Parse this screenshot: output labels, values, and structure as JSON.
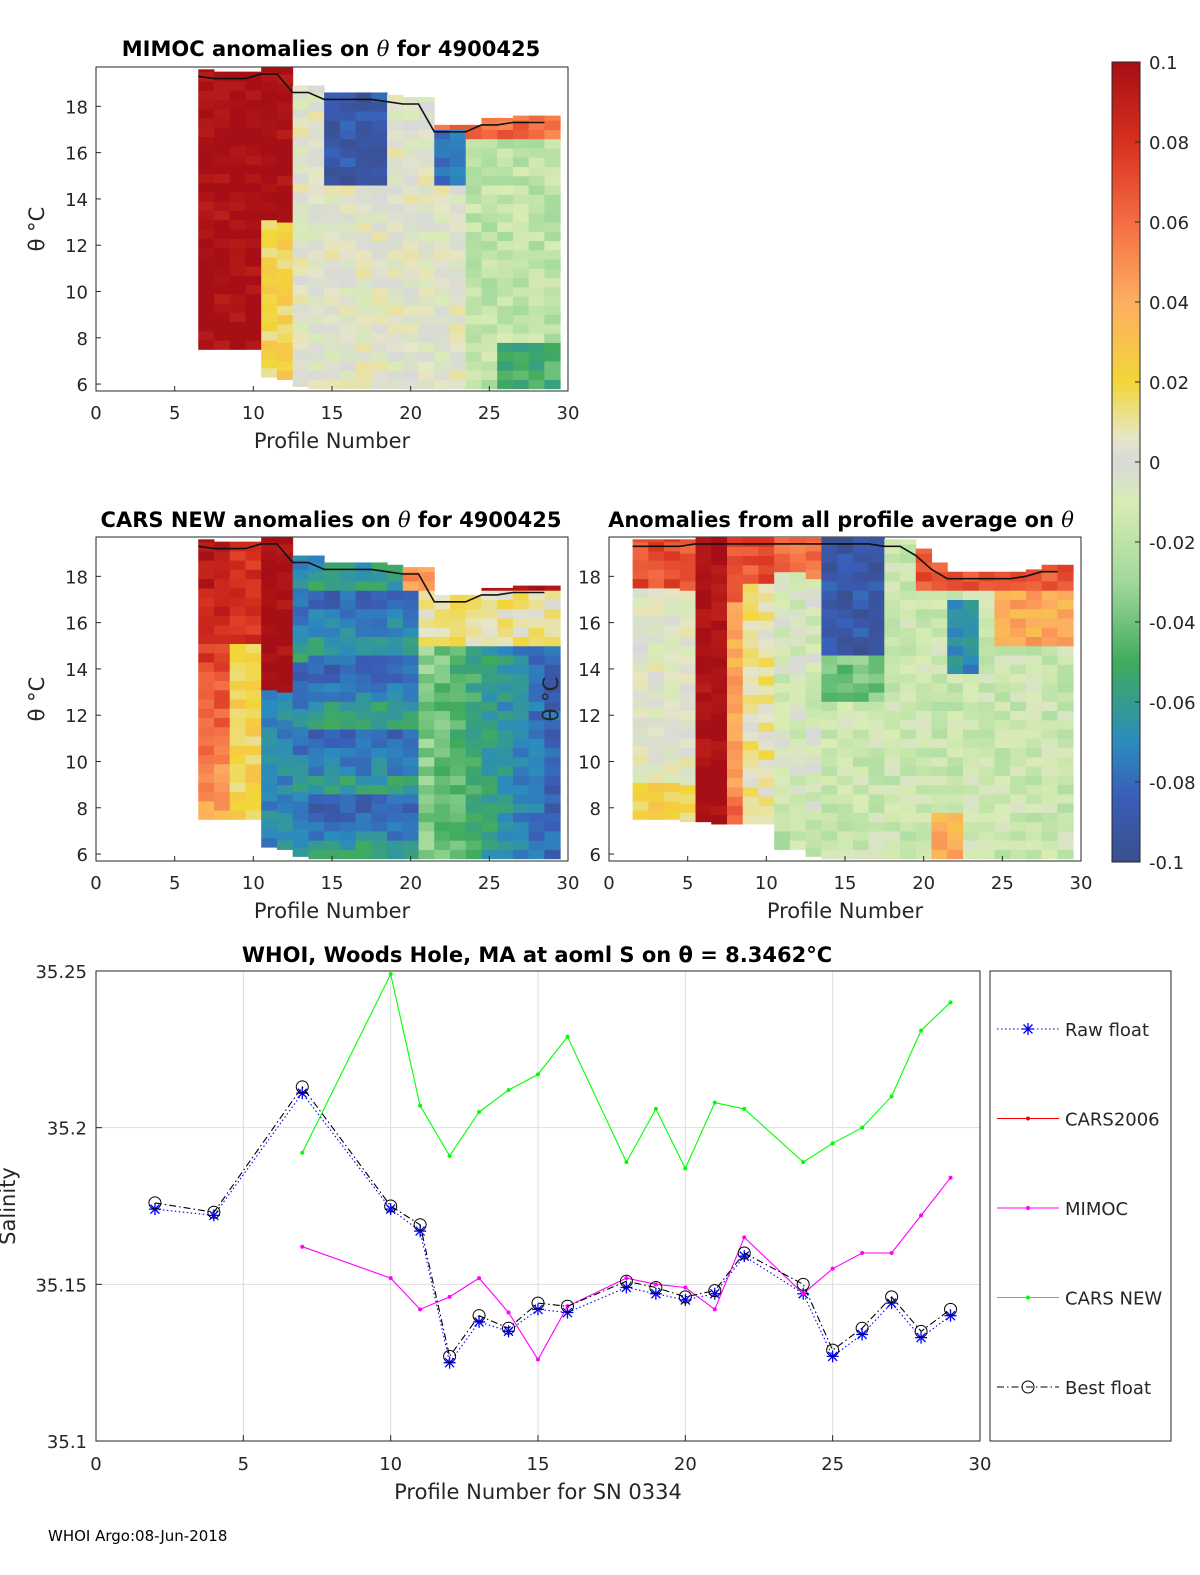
{
  "colors": {
    "raw_float": "#0000ff",
    "cars2006": "#ff0000",
    "mimoc": "#ff00ff",
    "cars_new": "#00ff00",
    "best_float": "#000000"
  },
  "footer": "WHOI Argo:08-Jun-2018",
  "chart_data": [
    {
      "id": "mimoc",
      "type": "heatmap",
      "title_prefix": "MIMOC anomalies on",
      "title_symbol": "θ",
      "title_suffix": "for 4900425",
      "xlabel": "Profile Number",
      "ylabel": "θ °C",
      "xlim": [
        0,
        30
      ],
      "ylim": [
        5.7,
        19.7
      ],
      "xticks": [
        "0",
        "5",
        "10",
        "15",
        "20",
        "25",
        "30"
      ],
      "yticks": [
        "6",
        "8",
        "10",
        "12",
        "14",
        "16",
        "18"
      ],
      "profile_bounds": [
        [
          7,
          7.5,
          19.6
        ],
        [
          8,
          7.5,
          19.5
        ],
        [
          9,
          7.5,
          19.5
        ],
        [
          10,
          7.5,
          19.5
        ],
        [
          11,
          6.3,
          19.7
        ],
        [
          12,
          6.2,
          19.7
        ],
        [
          13,
          5.9,
          18.9
        ],
        [
          14,
          5.8,
          18.9
        ],
        [
          15,
          5.8,
          18.6
        ],
        [
          16,
          5.8,
          18.6
        ],
        [
          17,
          5.8,
          18.6
        ],
        [
          18,
          5.8,
          18.6
        ],
        [
          19,
          5.8,
          18.5
        ],
        [
          20,
          5.8,
          18.4
        ],
        [
          21,
          5.8,
          18.4
        ],
        [
          22,
          5.8,
          17.2
        ],
        [
          23,
          5.8,
          17.2
        ],
        [
          24,
          5.8,
          17.2
        ],
        [
          25,
          5.8,
          17.5
        ],
        [
          26,
          5.8,
          17.5
        ],
        [
          27,
          5.8,
          17.6
        ],
        [
          28,
          5.8,
          17.6
        ],
        [
          29,
          5.8,
          17.6
        ]
      ]
    },
    {
      "id": "cars_new",
      "type": "heatmap",
      "title_prefix": "CARS NEW anomalies on",
      "title_symbol": "θ",
      "title_suffix": "for 4900425",
      "xlabel": "Profile Number",
      "ylabel": "θ °C",
      "xlim": [
        0,
        30
      ],
      "ylim": [
        5.7,
        19.7
      ],
      "xticks": [
        "0",
        "5",
        "10",
        "15",
        "20",
        "25",
        "30"
      ],
      "yticks": [
        "6",
        "8",
        "10",
        "12",
        "14",
        "16",
        "18"
      ],
      "profile_bounds": [
        [
          7,
          7.5,
          19.6
        ],
        [
          8,
          7.5,
          19.5
        ],
        [
          9,
          7.5,
          19.5
        ],
        [
          10,
          7.5,
          19.5
        ],
        [
          11,
          6.3,
          19.7
        ],
        [
          12,
          6.2,
          19.7
        ],
        [
          13,
          5.9,
          18.9
        ],
        [
          14,
          5.8,
          18.9
        ],
        [
          15,
          5.8,
          18.6
        ],
        [
          16,
          5.8,
          18.6
        ],
        [
          17,
          5.8,
          18.6
        ],
        [
          18,
          5.8,
          18.6
        ],
        [
          19,
          5.8,
          18.5
        ],
        [
          20,
          5.8,
          18.4
        ],
        [
          21,
          5.8,
          18.4
        ],
        [
          22,
          5.8,
          17.2
        ],
        [
          23,
          5.8,
          17.2
        ],
        [
          24,
          5.8,
          17.2
        ],
        [
          25,
          5.8,
          17.5
        ],
        [
          26,
          5.8,
          17.5
        ],
        [
          27,
          5.8,
          17.6
        ],
        [
          28,
          5.8,
          17.6
        ],
        [
          29,
          5.8,
          17.6
        ]
      ]
    },
    {
      "id": "profile_average",
      "type": "heatmap",
      "title_prefix": "Anomalies from all profile average on",
      "title_symbol": "θ",
      "title_suffix": "",
      "xlabel": "Profile Number",
      "ylabel": "θ °C",
      "xlim": [
        0,
        30
      ],
      "ylim": [
        5.7,
        19.7
      ],
      "xticks": [
        "0",
        "5",
        "10",
        "15",
        "20",
        "25",
        "30"
      ],
      "yticks": [
        "6",
        "8",
        "10",
        "12",
        "14",
        "16",
        "18"
      ],
      "profile_bounds": [
        [
          2,
          7.5,
          19.6
        ],
        [
          3,
          7.5,
          19.6
        ],
        [
          4,
          7.5,
          19.6
        ],
        [
          5,
          7.4,
          19.6
        ],
        [
          6,
          7.4,
          19.7
        ],
        [
          7,
          7.3,
          19.7
        ],
        [
          8,
          7.3,
          19.7
        ],
        [
          9,
          7.3,
          19.7
        ],
        [
          10,
          7.3,
          19.7
        ],
        [
          11,
          6.2,
          19.7
        ],
        [
          12,
          6.2,
          19.7
        ],
        [
          13,
          5.9,
          19.7
        ],
        [
          14,
          5.8,
          19.7
        ],
        [
          15,
          5.8,
          19.7
        ],
        [
          16,
          5.8,
          19.7
        ],
        [
          17,
          5.8,
          19.7
        ],
        [
          18,
          5.8,
          19.6
        ],
        [
          19,
          5.8,
          19.6
        ],
        [
          20,
          5.8,
          19.2
        ],
        [
          21,
          5.8,
          18.6
        ],
        [
          22,
          5.8,
          18.2
        ],
        [
          23,
          5.8,
          18.2
        ],
        [
          24,
          5.8,
          18.2
        ],
        [
          25,
          5.8,
          18.2
        ],
        [
          26,
          5.8,
          18.2
        ],
        [
          27,
          5.8,
          18.3
        ],
        [
          28,
          5.8,
          18.5
        ],
        [
          29,
          5.8,
          18.5
        ]
      ]
    },
    {
      "id": "colorbar",
      "type": "heatmap",
      "colormap": "red-yellow-gray-green-blue",
      "clim": [
        -0.1,
        0.1
      ],
      "tick_values": [
        0.1,
        0.08,
        0.06,
        0.04,
        0.02,
        0,
        -0.02,
        -0.04,
        -0.06,
        -0.08,
        -0.1
      ],
      "tick_labels": [
        "0.1",
        "0.08",
        "0.06",
        "0.04",
        "0.02",
        "0",
        "-0.02",
        "-0.04",
        "-0.06",
        "-0.08",
        "-0.1"
      ]
    },
    {
      "id": "salinity",
      "type": "line",
      "title": "WHOI, Woods Hole, MA at aoml S on θ = 8.3462°C",
      "xlabel": "Profile Number for SN 0334",
      "ylabel": "Salinity",
      "xlim": [
        0,
        30
      ],
      "ylim": [
        35.1,
        35.25
      ],
      "xticks": [
        "0",
        "5",
        "10",
        "15",
        "20",
        "25",
        "30"
      ],
      "yticks": [
        "35.1",
        "35.15",
        "35.2",
        "35.25"
      ],
      "grid": true,
      "legend_position": "outside-right",
      "series": [
        {
          "name": "Raw float",
          "color": "#0000ff",
          "marker": "asterisk",
          "line": "dotted",
          "x": [
            2,
            4,
            7,
            10,
            11,
            12,
            13,
            14,
            15,
            16,
            18,
            19,
            20,
            21,
            22,
            24,
            25,
            26,
            27,
            28,
            29
          ],
          "y": [
            35.174,
            35.172,
            35.211,
            35.174,
            35.167,
            35.125,
            35.138,
            35.135,
            35.142,
            35.141,
            35.149,
            35.147,
            35.145,
            35.147,
            35.159,
            35.147,
            35.127,
            35.134,
            35.144,
            35.133,
            35.14
          ]
        },
        {
          "name": "CARS2006",
          "color": "#ff0000",
          "marker": "dot",
          "line": "solid",
          "x": [],
          "y": []
        },
        {
          "name": "MIMOC",
          "color": "#ff00ff",
          "marker": "dot",
          "line": "solid",
          "x": [
            7,
            10,
            11,
            12,
            13,
            14,
            15,
            16,
            18,
            19,
            20,
            21,
            22,
            24,
            25,
            26,
            27,
            28,
            29
          ],
          "y": [
            35.162,
            35.152,
            35.142,
            35.146,
            35.152,
            35.141,
            35.126,
            35.143,
            35.152,
            35.15,
            35.149,
            35.142,
            35.165,
            35.147,
            35.155,
            35.16,
            35.16,
            35.172,
            35.184
          ]
        },
        {
          "name": "CARS NEW",
          "color": "#00ff00",
          "marker": "dot",
          "line": "solid",
          "x": [
            7,
            10,
            11,
            12,
            13,
            14,
            15,
            16,
            18,
            19,
            20,
            21,
            22,
            24,
            25,
            26,
            27,
            28,
            29
          ],
          "y": [
            35.192,
            35.249,
            35.207,
            35.191,
            35.205,
            35.212,
            35.217,
            35.229,
            35.189,
            35.206,
            35.187,
            35.208,
            35.206,
            35.189,
            35.195,
            35.2,
            35.21,
            35.231,
            35.24
          ]
        },
        {
          "name": "Best float",
          "color": "#000000",
          "marker": "circle",
          "line": "dashdot",
          "x": [
            2,
            4,
            7,
            10,
            11,
            12,
            13,
            14,
            15,
            16,
            18,
            19,
            20,
            21,
            22,
            24,
            25,
            26,
            27,
            28,
            29
          ],
          "y": [
            35.176,
            35.173,
            35.213,
            35.175,
            35.169,
            35.127,
            35.14,
            35.136,
            35.144,
            35.143,
            35.151,
            35.149,
            35.146,
            35.148,
            35.16,
            35.15,
            35.129,
            35.136,
            35.146,
            35.135,
            35.142
          ]
        }
      ]
    }
  ]
}
